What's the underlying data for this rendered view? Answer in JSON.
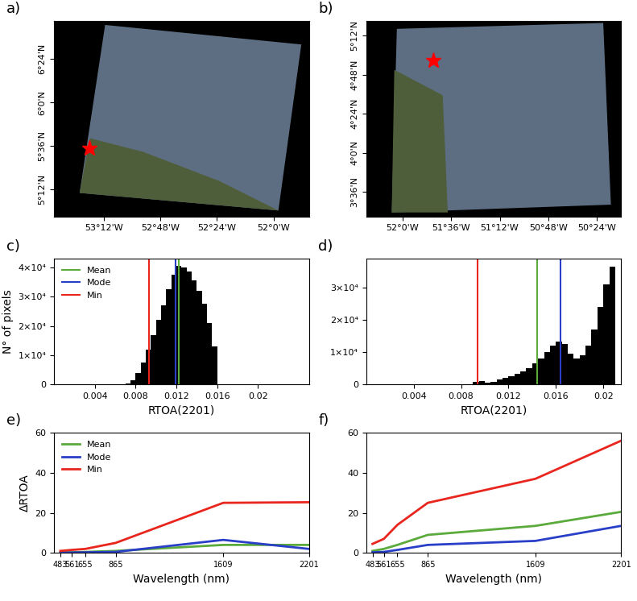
{
  "chart_data": [
    {
      "type": "map",
      "title": "a)",
      "xlim": [
        -53.55,
        -51.75
      ],
      "ylim": [
        4.95,
        6.75
      ],
      "xticks": [
        {
          "value": -53.2,
          "label": "53°12'W"
        },
        {
          "value": -52.8,
          "label": "52°48'W"
        },
        {
          "value": -52.4,
          "label": "52°24'W"
        },
        {
          "value": -52.0,
          "label": "52°0'W"
        }
      ],
      "yticks": [
        {
          "value": 5.2,
          "label": "5°12'N"
        },
        {
          "value": 5.6,
          "label": "5°36'N"
        },
        {
          "value": 6.0,
          "label": "6°0'N"
        },
        {
          "value": 6.4,
          "label": "6°24'N"
        }
      ],
      "x": [
        -53.3
      ],
      "y": [
        5.58
      ],
      "marker": "star",
      "color": "#ff0000"
    },
    {
      "type": "map",
      "title": "b)",
      "xlim": [
        -52.3,
        -50.2
      ],
      "ylim": [
        3.35,
        5.35
      ],
      "xticks": [
        {
          "value": -52.0,
          "label": "52°0'W"
        },
        {
          "value": -51.6,
          "label": "51°36'W"
        },
        {
          "value": -51.2,
          "label": "51°12'W"
        },
        {
          "value": -50.8,
          "label": "50°48'W"
        },
        {
          "value": -50.4,
          "label": "50°24'W"
        }
      ],
      "yticks": [
        {
          "value": 3.6,
          "label": "3°36'N"
        },
        {
          "value": 4.0,
          "label": "4°0'N"
        },
        {
          "value": 4.4,
          "label": "4°24'N"
        },
        {
          "value": 4.8,
          "label": "4°48'N"
        },
        {
          "value": 5.2,
          "label": "5°12'N"
        }
      ],
      "x": [
        -51.75
      ],
      "y": [
        4.95
      ],
      "marker": "star",
      "color": "#ff0000"
    },
    {
      "type": "histogram",
      "title": "c)",
      "x_label": "RTOA(2201)",
      "y_label": "N° of pixels",
      "bins": [
        0.007,
        0.0075,
        0.008,
        0.0085,
        0.009,
        0.0095,
        0.01,
        0.0105,
        0.011,
        0.0115,
        0.012,
        0.0125,
        0.013,
        0.0135,
        0.014,
        0.0145,
        0.015,
        0.0155,
        0.016
      ],
      "counts": [
        300,
        1500,
        4000,
        7500,
        12000,
        17000,
        22000,
        27000,
        32500,
        37500,
        40500,
        40000,
        38500,
        35500,
        32000,
        27500,
        21000,
        13000
      ],
      "color": "#000000",
      "series": [
        {
          "name": "Mean",
          "color": "#5aaa3c",
          "values": [
            0.0122
          ]
        },
        {
          "name": "Mode",
          "color": "#2a3fc8",
          "values": [
            0.0119
          ]
        },
        {
          "name": "Min",
          "color": "#e8261e",
          "values": [
            0.0093
          ]
        }
      ],
      "xlim": [
        0,
        0.025
      ],
      "xticks": [
        0.004,
        0.008,
        0.012,
        0.016,
        0.02
      ],
      "ylim": [
        0,
        43000
      ],
      "yticks": [
        0,
        {
          "value": 10000,
          "label": "1×10⁴"
        },
        {
          "value": 20000,
          "label": "2×10⁴"
        },
        {
          "value": 30000,
          "label": "3×10⁴"
        },
        {
          "value": 40000,
          "label": "4×10⁴"
        }
      ],
      "legend": "upper left"
    },
    {
      "type": "histogram",
      "title": "d)",
      "x_label": "RTOA(2201)",
      "bins": [
        0.009,
        0.0095,
        0.01,
        0.0105,
        0.011,
        0.0115,
        0.012,
        0.0125,
        0.013,
        0.0135,
        0.014,
        0.0145,
        0.015,
        0.0155,
        0.016,
        0.0165,
        0.017,
        0.0175,
        0.018,
        0.0185,
        0.019,
        0.0195,
        0.02,
        0.0205,
        0.021
      ],
      "counts": [
        900,
        1000,
        600,
        800,
        1500,
        2000,
        2600,
        3300,
        4200,
        5200,
        6500,
        8000,
        10000,
        12000,
        13300,
        12500,
        9500,
        8000,
        9000,
        12000,
        17000,
        24000,
        31000,
        36500
      ],
      "color": "#000000",
      "series": [
        {
          "name": "Mean",
          "color": "#5aaa3c",
          "values": [
            0.0144
          ]
        },
        {
          "name": "Mode",
          "color": "#2a3fc8",
          "values": [
            0.0164
          ]
        },
        {
          "name": "Min",
          "color": "#e8261e",
          "values": [
            0.0094
          ]
        }
      ],
      "xlim": [
        0,
        0.0215
      ],
      "xticks": [
        0.004,
        0.008,
        0.012,
        0.016,
        0.02
      ],
      "ylim": [
        0,
        39000
      ],
      "yticks": [
        0,
        {
          "value": 10000,
          "label": "1×10⁴"
        },
        {
          "value": 20000,
          "label": "2×10⁴"
        },
        {
          "value": 30000,
          "label": "3×10⁴"
        }
      ]
    },
    {
      "type": "line",
      "title": "e)",
      "x_label": "Wavelength (nm)",
      "y_label": "ΔRTOA",
      "x": [
        483,
        561,
        655,
        865,
        1609,
        2201
      ],
      "series": [
        {
          "name": "Mean",
          "color": "#5aaa3c",
          "values": [
            0.3,
            0.3,
            0.5,
            1,
            4,
            4
          ]
        },
        {
          "name": "Mode",
          "color": "#2a3fc8",
          "values": [
            0.2,
            0.2,
            0.3,
            0.5,
            6.5,
            2
          ]
        },
        {
          "name": "Min",
          "color": "#e8261e",
          "values": [
            1,
            1.5,
            2,
            5,
            25,
            25.3
          ]
        }
      ],
      "xlim": [
        440,
        2201
      ],
      "xticks": [
        483,
        561,
        655,
        865,
        1609,
        2201
      ],
      "ylim": [
        0,
        60
      ],
      "yticks": [
        0,
        20,
        40,
        60
      ],
      "legend": "upper left"
    },
    {
      "type": "line",
      "title": "f)",
      "x_label": "Wavelength (nm)",
      "x": [
        483,
        561,
        655,
        865,
        1609,
        2201
      ],
      "series": [
        {
          "name": "Mean",
          "color": "#5aaa3c",
          "values": [
            1,
            2,
            4,
            9,
            13.5,
            20.5
          ]
        },
        {
          "name": "Mode",
          "color": "#2a3fc8",
          "values": [
            0.3,
            0.5,
            1.5,
            4,
            6,
            13.5
          ]
        },
        {
          "name": "Min",
          "color": "#e8261e",
          "values": [
            4.5,
            7,
            14,
            25,
            37,
            56
          ]
        }
      ],
      "xlim": [
        440,
        2201
      ],
      "xticks": [
        483,
        561,
        655,
        865,
        1609,
        2201
      ],
      "ylim": [
        0,
        60
      ],
      "yticks": [
        0,
        20,
        40,
        60
      ]
    }
  ]
}
